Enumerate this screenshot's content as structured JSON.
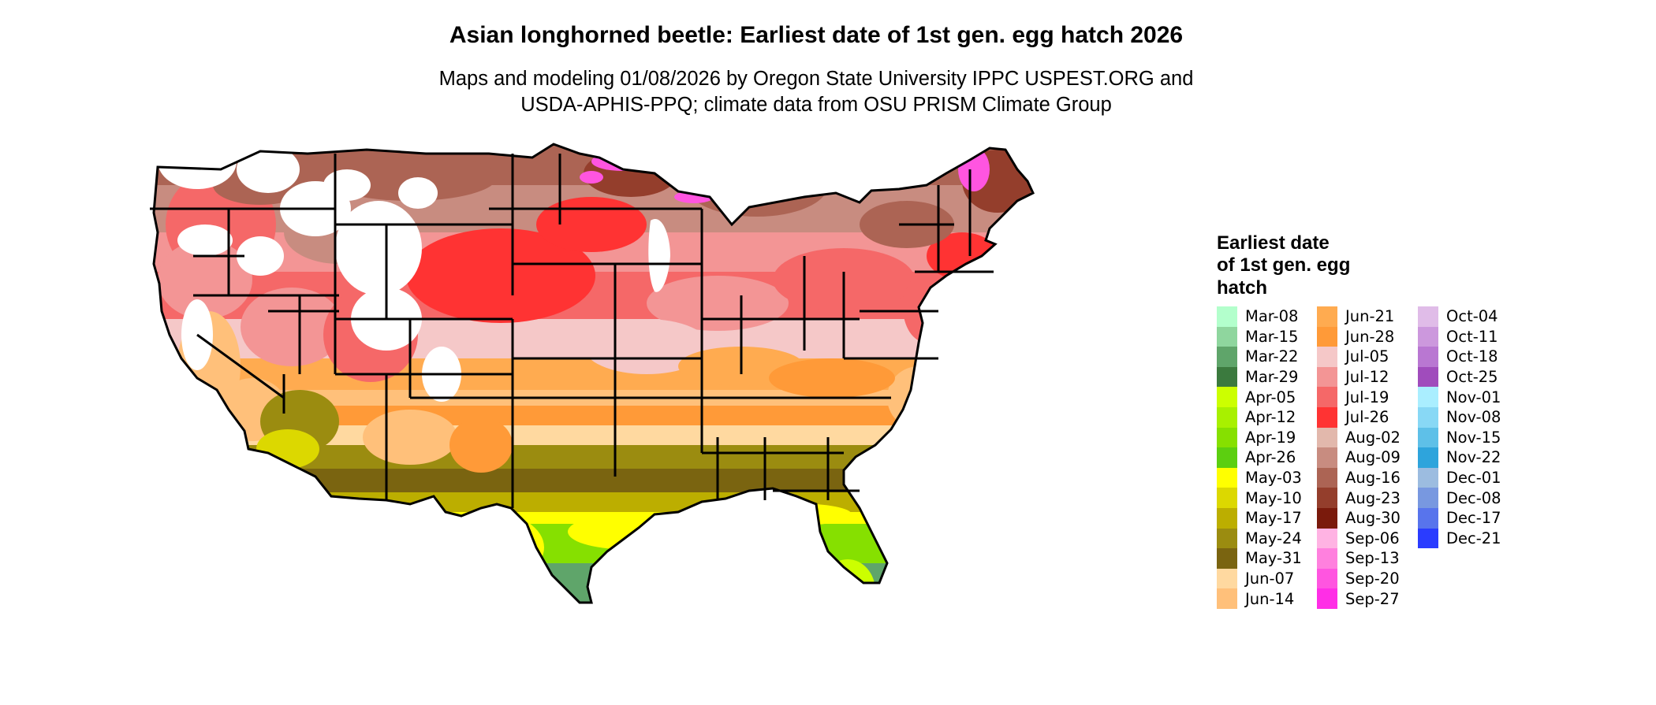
{
  "header": {
    "title": "Asian longhorned beetle: Earliest date of 1st gen. egg hatch 2026",
    "subtitle_line1": "Maps and modeling 01/08/2026 by Oregon State University IPPC USPEST.ORG and",
    "subtitle_line2": "USDA-APHIS-PPQ; climate data from OSU PRISM Climate Group"
  },
  "legend": {
    "title_line1": "Earliest date",
    "title_line2": "of 1st gen. egg",
    "title_line3": "hatch",
    "columns": [
      [
        {
          "label": "Mar-08",
          "color": "#b3ffcc"
        },
        {
          "label": "Mar-15",
          "color": "#8fd69e"
        },
        {
          "label": "Mar-22",
          "color": "#5fa56a"
        },
        {
          "label": "Mar-29",
          "color": "#3b7a3e"
        },
        {
          "label": "Apr-05",
          "color": "#ccff00"
        },
        {
          "label": "Apr-12",
          "color": "#a8f000"
        },
        {
          "label": "Apr-19",
          "color": "#86e000"
        },
        {
          "label": "Apr-26",
          "color": "#5ccf10"
        },
        {
          "label": "May-03",
          "color": "#ffff00"
        },
        {
          "label": "May-10",
          "color": "#dcd800"
        },
        {
          "label": "May-17",
          "color": "#bcae00"
        },
        {
          "label": "May-24",
          "color": "#9b8c10"
        },
        {
          "label": "May-31",
          "color": "#7a6410"
        },
        {
          "label": "Jun-07",
          "color": "#ffd9a0"
        },
        {
          "label": "Jun-14",
          "color": "#ffc07a"
        }
      ],
      [
        {
          "label": "Jun-21",
          "color": "#ffab50"
        },
        {
          "label": "Jun-28",
          "color": "#ff9a38"
        },
        {
          "label": "Jul-05",
          "color": "#f5c8c8"
        },
        {
          "label": "Jul-12",
          "color": "#f39595"
        },
        {
          "label": "Jul-19",
          "color": "#f56868"
        },
        {
          "label": "Jul-26",
          "color": "#ff3333"
        },
        {
          "label": "Aug-02",
          "color": "#e2b8ac"
        },
        {
          "label": "Aug-09",
          "color": "#c88c80"
        },
        {
          "label": "Aug-16",
          "color": "#ac6454"
        },
        {
          "label": "Aug-23",
          "color": "#943e2c"
        },
        {
          "label": "Aug-30",
          "color": "#7a1a0c"
        },
        {
          "label": "Sep-06",
          "color": "#ffb3e3"
        },
        {
          "label": "Sep-13",
          "color": "#ff80de"
        },
        {
          "label": "Sep-20",
          "color": "#ff55e0"
        },
        {
          "label": "Sep-27",
          "color": "#ff2ee6"
        }
      ],
      [
        {
          "label": "Oct-04",
          "color": "#e0bce8"
        },
        {
          "label": "Oct-11",
          "color": "#cc98dd"
        },
        {
          "label": "Oct-18",
          "color": "#b977d2"
        },
        {
          "label": "Oct-25",
          "color": "#a04cbc"
        },
        {
          "label": "Nov-01",
          "color": "#aaeeff"
        },
        {
          "label": "Nov-08",
          "color": "#88d8f5"
        },
        {
          "label": "Nov-15",
          "color": "#5ec0e8"
        },
        {
          "label": "Nov-22",
          "color": "#2ea4dc"
        },
        {
          "label": "Dec-01",
          "color": "#9cbce0"
        },
        {
          "label": "Dec-08",
          "color": "#7898e0"
        },
        {
          "label": "Dec-17",
          "color": "#5874ec"
        },
        {
          "label": "Dec-21",
          "color": "#2a3cff"
        }
      ]
    ]
  },
  "map": {
    "colors": {
      "state_border": "#000000",
      "no_hatch": "#ffffff",
      "north_brown": "#a05a4c",
      "mid_pink": "#f39595",
      "red": "#f54040",
      "orange": "#ffab50",
      "olive": "#8a7410",
      "yellow": "#ffff00",
      "green": "#86e000",
      "dark_green": "#3b7a3e",
      "magenta": "#ff55e0"
    }
  }
}
